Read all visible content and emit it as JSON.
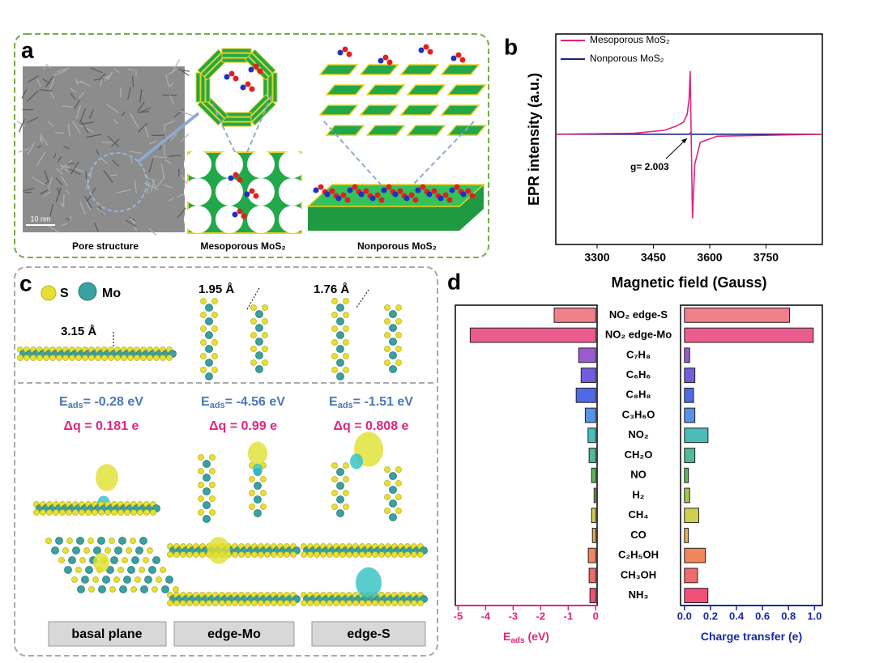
{
  "panel_a": {
    "label": "a",
    "scale_bar": "10 nm",
    "captions": [
      "Pore structure",
      "Mesoporous MoS₂",
      "Nonporous MoS₂"
    ]
  },
  "panel_c": {
    "label": "c",
    "legend": [
      "S",
      "Mo"
    ],
    "distances": [
      "3.15 Å",
      "1.95 Å",
      "1.76 Å"
    ],
    "energies": [
      [
        "E",
        "ads",
        "= -0.28 eV"
      ],
      [
        "E",
        "ads",
        "= -4.56 eV"
      ],
      [
        "E",
        "ads",
        "= -1.51 eV"
      ]
    ],
    "charges": [
      "Δq = 0.181 e",
      "Δq = 0.99 e",
      "Δq = 0.808 e"
    ],
    "sites": [
      "basal plane",
      "edge-Mo",
      "edge-S"
    ]
  },
  "chart_data": [
    {
      "type": "line",
      "label": "b",
      "x_label": "Magnetic field (Gauss)",
      "y_label": "EPR intensity (a.u.)",
      "annotation": "g= 2.003",
      "x": [
        3190,
        3400,
        3480,
        3510,
        3530,
        3540,
        3545,
        3548,
        3551,
        3554,
        3560,
        3575,
        3620,
        3900
      ],
      "series": [
        {
          "name": "Mesoporous MoS₂",
          "color": "#e0257f",
          "values": [
            0,
            0.01,
            0.04,
            0.08,
            0.12,
            0.2,
            0.35,
            0.63,
            -0.1,
            -0.84,
            -0.3,
            -0.08,
            -0.02,
            0
          ]
        },
        {
          "name": "Nonporous   MoS₂",
          "color": "#1a237e",
          "values": [
            0,
            0,
            0,
            0,
            0,
            0,
            0,
            0.01,
            -0.01,
            0,
            0,
            0,
            0,
            0
          ]
        }
      ],
      "xlim": [
        3190,
        3900
      ],
      "ylim": [
        -1.1,
        1
      ],
      "xticks": [
        3300,
        3450,
        3600,
        3750
      ]
    },
    {
      "type": "bar",
      "orientation": "horizontal",
      "label": "d",
      "categories": [
        "NO₂ edge-S",
        "NO₂ edge-Mo",
        "C₇H₈",
        "C₆H₆",
        "C₈H₈",
        "C₃H₆O",
        "NO₂",
        "CH₂O",
        "NO",
        "H₂",
        "CH₄",
        "CO",
        "C₂H₅OH",
        "CH₃OH",
        "NH₃"
      ],
      "colors": [
        "#f06878",
        "#e8407a",
        "#8a3ec8",
        "#5a40d8",
        "#3050e0",
        "#3a80e0",
        "#2ab0b0",
        "#30b080",
        "#40b040",
        "#90c030",
        "#c8c830",
        "#e0a030",
        "#f07040",
        "#f05050",
        "#f03060"
      ],
      "series": [
        {
          "x_label": [
            "E",
            "ads",
            " (eV)"
          ],
          "axis_color": "#e0257f",
          "values": [
            -1.51,
            -4.56,
            -0.62,
            -0.53,
            -0.71,
            -0.38,
            -0.28,
            -0.24,
            -0.15,
            -0.06,
            -0.15,
            -0.12,
            -0.27,
            -0.24,
            -0.21
          ],
          "xlim": [
            -5.1,
            0.05
          ],
          "xticks": [
            -5,
            -4,
            -3,
            -2,
            -1,
            0
          ]
        },
        {
          "x_label": [
            "Charge transfer (e)"
          ],
          "axis_color": "#1a2a9c",
          "values": [
            0.808,
            0.99,
            0.04,
            0.08,
            0.07,
            0.08,
            0.181,
            0.08,
            0.03,
            0.04,
            0.11,
            0.03,
            0.16,
            0.1,
            0.18
          ],
          "xlim": [
            -0.03,
            1.06
          ],
          "xticks": [
            {
              "value": 0,
              "label": "0.0"
            },
            0.2,
            0.4,
            0.6,
            0.8,
            {
              "value": 1,
              "label": "1.0"
            }
          ]
        }
      ]
    }
  ]
}
